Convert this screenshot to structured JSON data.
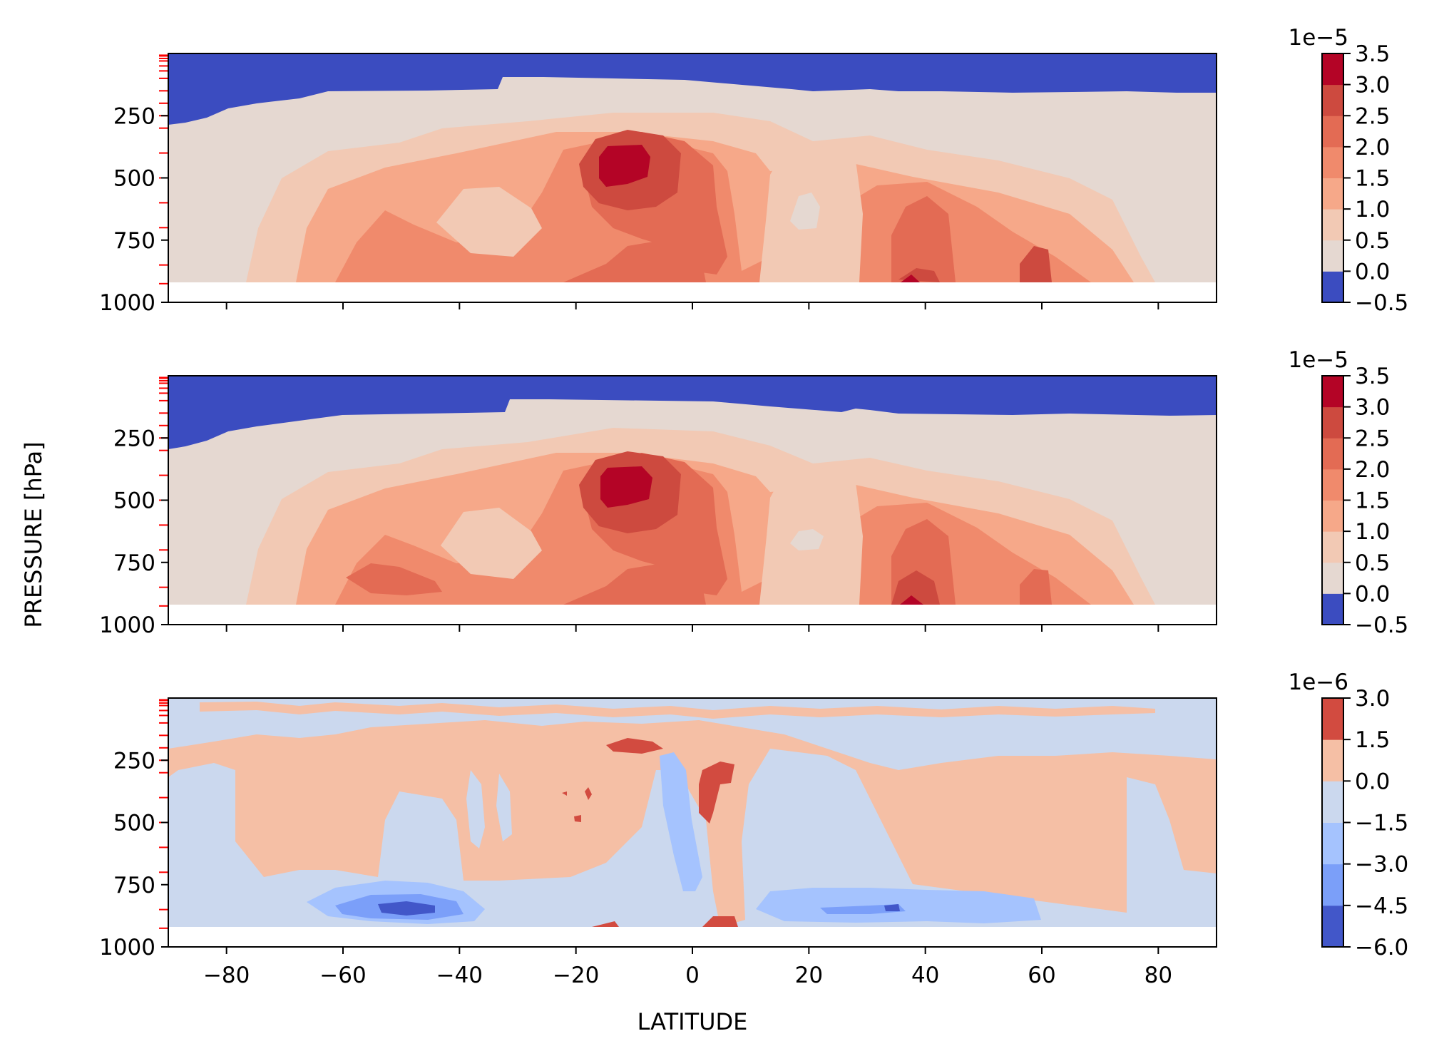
{
  "figure": {
    "xlabel": "LATITUDE",
    "ylabel": "PRESSURE [hPa]"
  },
  "chart_data": [
    {
      "type": "heatmap",
      "panel": "top",
      "xlim": [
        -90,
        90
      ],
      "ylim": [
        1000,
        0
      ],
      "x_ticks": [
        -80,
        -60,
        -40,
        -20,
        0,
        20,
        40,
        60,
        80
      ],
      "x_tick_labels_visible": false,
      "y_ticks": [
        250,
        500,
        750,
        1000
      ],
      "y_tick_labels": [
        "250",
        "500",
        "750",
        "1000"
      ],
      "pressure_level_marks": [
        7,
        10,
        20,
        30,
        50,
        70,
        100,
        150,
        200,
        250,
        300,
        400,
        500,
        600,
        700,
        850,
        925
      ],
      "data_bottom": 925,
      "colormap": "coolwarm",
      "colorbar": {
        "multiplier_label": "1e−5",
        "levels": [
          -0.5,
          0.0,
          0.5,
          1.0,
          1.5,
          2.0,
          2.5,
          3.0,
          3.5
        ],
        "tick_labels": [
          "−0.5",
          "0.0",
          "0.5",
          "1.0",
          "1.5",
          "2.0",
          "2.5",
          "3.0",
          "3.5"
        ],
        "colors": [
          "#3b4cc0",
          "#e5d8d1",
          "#f2c9b4",
          "#f6a889",
          "#f08a6c",
          "#e36b54",
          "#cd4a3f",
          "#b40426"
        ]
      },
      "peaks": [
        {
          "lat": -12,
          "p": 450,
          "value": 3.5
        },
        {
          "lat": 38,
          "p": 910,
          "value": 3.5
        }
      ]
    },
    {
      "type": "heatmap",
      "panel": "middle",
      "xlim": [
        -90,
        90
      ],
      "ylim": [
        1000,
        0
      ],
      "x_ticks": [
        -80,
        -60,
        -40,
        -20,
        0,
        20,
        40,
        60,
        80
      ],
      "x_tick_labels_visible": false,
      "y_ticks": [
        250,
        500,
        750,
        1000
      ],
      "y_tick_labels": [
        "250",
        "500",
        "750",
        "1000"
      ],
      "pressure_level_marks": [
        7,
        10,
        20,
        30,
        50,
        70,
        100,
        150,
        200,
        250,
        300,
        400,
        500,
        600,
        700,
        850,
        925
      ],
      "data_bottom": 925,
      "colormap": "coolwarm",
      "colorbar": {
        "multiplier_label": "1e−5",
        "levels": [
          -0.5,
          0.0,
          0.5,
          1.0,
          1.5,
          2.0,
          2.5,
          3.0,
          3.5
        ],
        "tick_labels": [
          "−0.5",
          "0.0",
          "0.5",
          "1.0",
          "1.5",
          "2.0",
          "2.5",
          "3.0",
          "3.5"
        ],
        "colors": [
          "#3b4cc0",
          "#e5d8d1",
          "#f2c9b4",
          "#f6a889",
          "#f08a6c",
          "#e36b54",
          "#cd4a3f",
          "#b40426"
        ]
      },
      "peaks": [
        {
          "lat": -11,
          "p": 440,
          "value": 3.5
        },
        {
          "lat": 38,
          "p": 910,
          "value": 3.5
        }
      ]
    },
    {
      "type": "heatmap",
      "panel": "bottom",
      "xlim": [
        -90,
        90
      ],
      "ylim": [
        1000,
        0
      ],
      "x_ticks": [
        -80,
        -60,
        -40,
        -20,
        0,
        20,
        40,
        60,
        80
      ],
      "x_tick_labels": [
        "−80",
        "−60",
        "−40",
        "−20",
        "0",
        "20",
        "40",
        "60",
        "80"
      ],
      "x_tick_labels_visible": true,
      "y_ticks": [
        250,
        500,
        750,
        1000
      ],
      "y_tick_labels": [
        "250",
        "500",
        "750",
        "1000"
      ],
      "pressure_level_marks": [
        7,
        10,
        20,
        30,
        50,
        70,
        100,
        150,
        200,
        250,
        300,
        400,
        500,
        600,
        700,
        850,
        925
      ],
      "data_bottom": 925,
      "colormap": "coolwarm",
      "colorbar": {
        "multiplier_label": "1e−6",
        "levels": [
          -6.0,
          -4.5,
          -3.0,
          -1.5,
          0.0,
          1.5,
          3.0
        ],
        "tick_labels": [
          "−6.0",
          "−4.5",
          "−3.0",
          "−1.5",
          "0.0",
          "1.5",
          "3.0"
        ],
        "colors": [
          "#4257c9",
          "#7b9ff9",
          "#a5c3fe",
          "#cbd8ee",
          "#f5bfa5",
          "#d24b40"
        ]
      },
      "troughs": [
        {
          "lat": -48,
          "p": 845,
          "value": -6.0
        },
        {
          "lat": 35,
          "p": 845,
          "value": -4.5
        }
      ]
    }
  ]
}
